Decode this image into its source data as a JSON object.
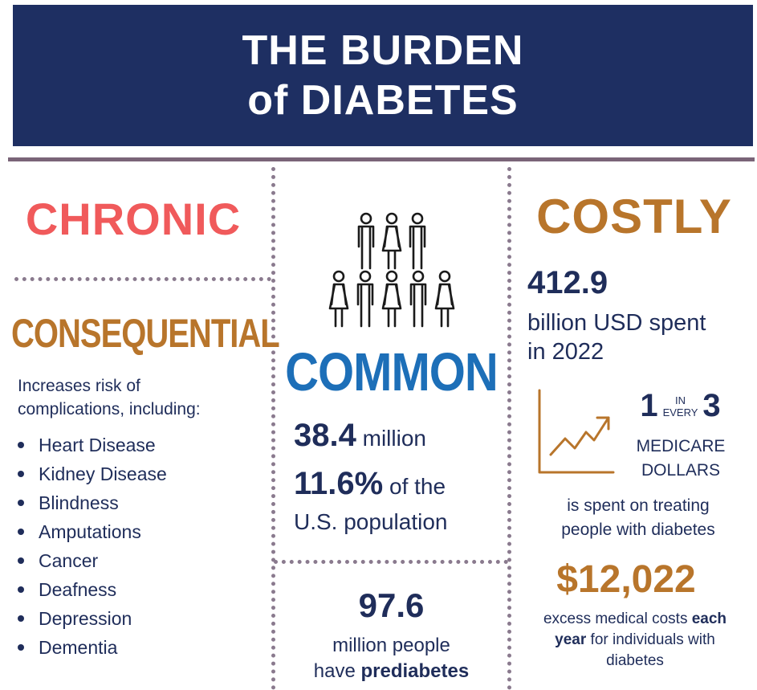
{
  "header": {
    "line1": "THE BURDEN",
    "line2": "of DIABETES"
  },
  "chronic": {
    "title": "CHRONIC"
  },
  "consequential": {
    "title": "CONSEQUENTIAL",
    "intro_line1": "Increases risk of",
    "intro_line2": "complications, including:",
    "items": [
      "Heart Disease",
      "Kidney Disease",
      "Blindness",
      "Amputations",
      "Cancer",
      "Deafness",
      "Depression",
      "Dementia"
    ]
  },
  "common": {
    "icon": "people-group-icon",
    "title": "COMMON",
    "count_value": "38.4",
    "count_unit": "million",
    "pct_value": "11.6%",
    "pct_suffix": "of the",
    "pct_line2": "U.S. population",
    "prediabetes_value": "97.6",
    "prediabetes_line1": "million people",
    "prediabetes_have": "have",
    "prediabetes_bold": "prediabetes"
  },
  "costly": {
    "title": "COSTLY",
    "spend_value": "412.9",
    "spend_line1": "billion USD spent",
    "spend_line2": "in 2022",
    "chart_icon": "trend-up-chart-icon",
    "ratio_num1": "1",
    "ratio_in": "IN",
    "ratio_every": "EVERY",
    "ratio_num2": "3",
    "medicare_line1": "MEDICARE",
    "medicare_line2": "DOLLARS",
    "treat_line1": "is spent on treating",
    "treat_line2": "people with diabetes",
    "excess_value": "$12,022",
    "excess_pre": "excess medical costs ",
    "excess_bold1": "each",
    "excess_bold2": "year",
    "excess_post": " for individuals with",
    "excess_line3": "diabetes"
  },
  "colors": {
    "navy": "#1e2f62",
    "coral": "#f05a5b",
    "gold": "#b8752b",
    "blue": "#1d6fb8"
  }
}
